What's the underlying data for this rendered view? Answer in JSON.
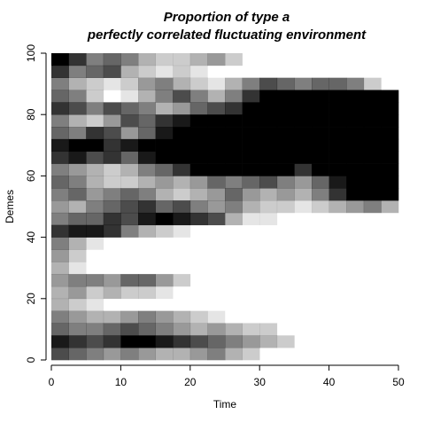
{
  "chart_data": {
    "type": "heatmap",
    "title": "Proportion of type a",
    "subtitle": "perfectly correlated fluctuating environment",
    "xlabel": "Time",
    "ylabel": "Demes",
    "xlim": [
      0,
      50
    ],
    "xticks": [
      0,
      10,
      20,
      30,
      40,
      50
    ],
    "ylim": [
      0,
      100
    ],
    "yticks": [
      0,
      20,
      40,
      60,
      80,
      100
    ],
    "color": "#000000",
    "x": [
      1.25,
      3.75,
      6.25,
      8.75,
      11.25,
      13.75,
      16.25,
      18.75,
      21.25,
      23.75,
      26.25,
      28.75,
      31.25,
      33.75,
      36.25,
      38.75,
      41.25,
      43.75,
      46.25,
      48.75
    ],
    "y": [
      2,
      6,
      10,
      14,
      18,
      22,
      26,
      30,
      34,
      38,
      42,
      46,
      50,
      54,
      58,
      62,
      66,
      70,
      74,
      78,
      82,
      86,
      90,
      94,
      98
    ],
    "z": [
      [
        0.7,
        0.6,
        0.5,
        0.4,
        0.5,
        0.4,
        0.3,
        0.3,
        0.4,
        0.5,
        0.3,
        0.2,
        0,
        0,
        0,
        0,
        0,
        0,
        0,
        0
      ],
      [
        0.9,
        0.8,
        0.7,
        0.8,
        1,
        1,
        0.9,
        0.8,
        0.7,
        0.6,
        0.5,
        0.4,
        0.3,
        0.2,
        0,
        0,
        0,
        0,
        0,
        0
      ],
      [
        0.6,
        0.5,
        0.5,
        0.6,
        0.7,
        0.6,
        0.5,
        0.4,
        0.3,
        0.4,
        0.3,
        0.2,
        0.2,
        0,
        0,
        0,
        0,
        0,
        0,
        0
      ],
      [
        0.5,
        0.4,
        0.3,
        0.3,
        0.4,
        0.5,
        0.4,
        0.3,
        0.2,
        0.1,
        0,
        0,
        0,
        0,
        0,
        0,
        0,
        0,
        0,
        0
      ],
      [
        0.3,
        0.2,
        0.1,
        0,
        0,
        0,
        0,
        0,
        0,
        0,
        0,
        0,
        0,
        0,
        0,
        0,
        0,
        0,
        0,
        0
      ],
      [
        0.3,
        0.4,
        0.2,
        0.3,
        0.2,
        0.2,
        0.1,
        0,
        0,
        0,
        0,
        0,
        0,
        0,
        0,
        0,
        0,
        0,
        0,
        0
      ],
      [
        0.4,
        0.5,
        0.5,
        0.4,
        0.6,
        0.6,
        0.4,
        0.2,
        0,
        0,
        0,
        0,
        0,
        0,
        0,
        0,
        0,
        0,
        0,
        0
      ],
      [
        0.3,
        0.1,
        0,
        0,
        0,
        0,
        0,
        0,
        0,
        0,
        0,
        0,
        0,
        0,
        0,
        0,
        0,
        0,
        0,
        0
      ],
      [
        0.4,
        0.2,
        0,
        0,
        0,
        0,
        0,
        0,
        0,
        0,
        0,
        0,
        0,
        0,
        0,
        0,
        0,
        0,
        0,
        0
      ],
      [
        0.5,
        0.3,
        0.1,
        0,
        0,
        0,
        0,
        0,
        0,
        0,
        0,
        0,
        0,
        0,
        0,
        0,
        0,
        0,
        0,
        0
      ],
      [
        0.8,
        0.9,
        0.9,
        0.8,
        0.5,
        0.3,
        0.2,
        0.1,
        0,
        0,
        0,
        0,
        0,
        0,
        0,
        0,
        0,
        0,
        0,
        0
      ],
      [
        0.5,
        0.6,
        0.6,
        0.8,
        0.7,
        0.9,
        1,
        0.9,
        0.8,
        0.7,
        0.3,
        0.1,
        0.1,
        0,
        0,
        0,
        0,
        0,
        0,
        0
      ],
      [
        0.4,
        0.3,
        0.5,
        0.6,
        0.7,
        0.8,
        0.6,
        0.7,
        0.5,
        0.4,
        0.5,
        0.3,
        0.2,
        0.2,
        0.1,
        0.2,
        0.3,
        0.4,
        0.5,
        0.3
      ],
      [
        0.5,
        0.6,
        0.4,
        0.5,
        0.6,
        0.5,
        0.3,
        0.2,
        0.3,
        0.4,
        0.6,
        0.4,
        0.3,
        0.4,
        0.3,
        0.5,
        0.8,
        1,
        1,
        1
      ],
      [
        0.6,
        0.5,
        0.3,
        0.2,
        0.2,
        0.3,
        0.4,
        0.3,
        0.4,
        0.6,
        0.5,
        0.6,
        0.7,
        0.5,
        0.4,
        0.6,
        0.9,
        1,
        1,
        1
      ],
      [
        0.5,
        0.4,
        0.3,
        0.2,
        0.3,
        0.5,
        0.6,
        0.8,
        1,
        1,
        1,
        1,
        1,
        1,
        0.8,
        1,
        1,
        1,
        1,
        1
      ],
      [
        0.8,
        0.9,
        0.7,
        0.8,
        0.6,
        0.9,
        1,
        1,
        1,
        1,
        1,
        1,
        1,
        1,
        1,
        1,
        1,
        1,
        1,
        1
      ],
      [
        0.9,
        1,
        1,
        0.8,
        0.9,
        1,
        1,
        1,
        1,
        1,
        1,
        1,
        1,
        1,
        1,
        1,
        1,
        1,
        1,
        1
      ],
      [
        0.6,
        0.5,
        0.8,
        0.7,
        0.4,
        0.6,
        0.9,
        1,
        1,
        1,
        1,
        1,
        1,
        1,
        1,
        1,
        1,
        1,
        1,
        1
      ],
      [
        0.5,
        0.3,
        0.2,
        0.4,
        0.7,
        0.6,
        0.8,
        0.9,
        1,
        1,
        1,
        1,
        1,
        1,
        1,
        1,
        1,
        1,
        1,
        1
      ],
      [
        0.8,
        0.7,
        0.5,
        0.7,
        0.6,
        0.5,
        0.3,
        0.4,
        0.6,
        0.7,
        0.8,
        1,
        1,
        1,
        1,
        1,
        1,
        1,
        1,
        1
      ],
      [
        0.6,
        0.5,
        0.2,
        0,
        0.1,
        0.3,
        0.5,
        0.7,
        0.5,
        0.3,
        0.5,
        0.8,
        1,
        1,
        1,
        1,
        1,
        1,
        1,
        1
      ],
      [
        0.5,
        0.3,
        0.2,
        0.1,
        0.2,
        0.4,
        0.5,
        0.3,
        0.2,
        0.1,
        0.3,
        0.5,
        0.7,
        0.6,
        0.5,
        0.6,
        0.6,
        0.5,
        0.2,
        0
      ],
      [
        0.8,
        0.5,
        0.6,
        0.7,
        0.3,
        0.2,
        0.1,
        0.2,
        0.1,
        0,
        0,
        0,
        0,
        0,
        0,
        0,
        0,
        0,
        0,
        0
      ],
      [
        1,
        0.8,
        0.5,
        0.6,
        0.5,
        0.3,
        0.2,
        0.2,
        0.3,
        0.4,
        0.2,
        0,
        0,
        0,
        0,
        0,
        0,
        0,
        0,
        0
      ]
    ]
  }
}
